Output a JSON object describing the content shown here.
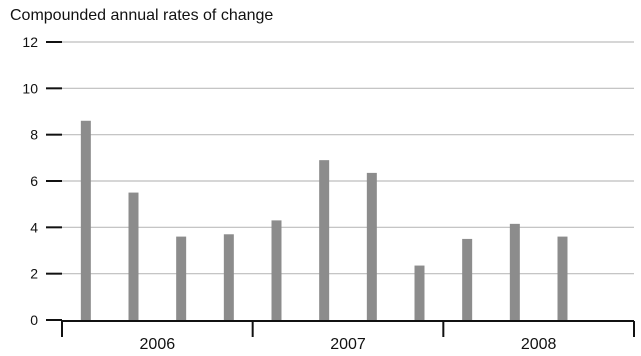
{
  "chart_data": {
    "type": "bar",
    "title": "Compounded annual rates of change",
    "xlabel": "",
    "ylabel": "",
    "ylim": [
      0,
      12
    ],
    "yticks": [
      0,
      2,
      4,
      6,
      8,
      10,
      12
    ],
    "grid": true,
    "legend": "none",
    "bar_color": "#8c8c8c",
    "grid_color": "#bdbdbd",
    "axis_color": "#111111",
    "groups": [
      {
        "label": "2006",
        "values": [
          8.6,
          5.5,
          3.6,
          3.7
        ]
      },
      {
        "label": "2007",
        "values": [
          4.3,
          6.9,
          6.35,
          2.35
        ]
      },
      {
        "label": "2008",
        "values": [
          3.5,
          4.15,
          3.6
        ]
      }
    ],
    "slots_per_group": 4
  }
}
